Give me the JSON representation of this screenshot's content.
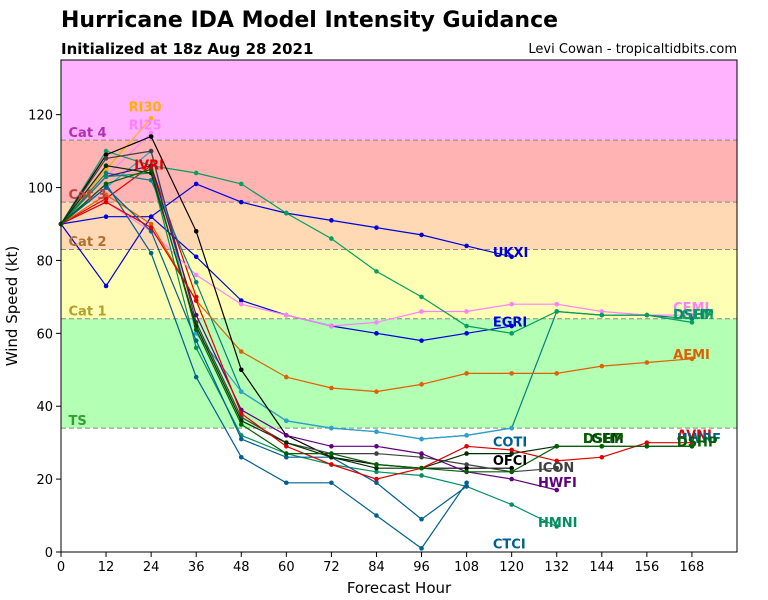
{
  "header": {
    "title": "Hurricane IDA Model Intensity Guidance",
    "subtitle": "Initialized at 18z Aug 28 2021",
    "credit": "Levi Cowan - tropicaltidbits.com"
  },
  "chart_data": {
    "type": "line",
    "xlabel": "Forecast Hour",
    "ylabel": "Wind Speed (kt)",
    "xlim": [
      0,
      180
    ],
    "ylim": [
      0,
      135
    ],
    "xticks": [
      0,
      12,
      24,
      36,
      48,
      60,
      72,
      84,
      96,
      108,
      120,
      132,
      144,
      156,
      168
    ],
    "yticks": [
      0,
      20,
      40,
      60,
      80,
      100,
      120
    ],
    "grid": false,
    "bands": [
      {
        "label": "",
        "from": 113,
        "to": 135,
        "color": "#ffb3ff"
      },
      {
        "label": "Cat 4",
        "from": 113,
        "to": 113,
        "color": "#ffb3ff",
        "text_color": "#b030b0"
      },
      {
        "label": "Cat 3",
        "from": 96,
        "to": 113,
        "color": "#ffb3b3",
        "text_color": "#c04040"
      },
      {
        "label": "Cat 2",
        "from": 83,
        "to": 96,
        "color": "#ffd9b3",
        "text_color": "#b07030"
      },
      {
        "label": "Cat 1",
        "from": 64,
        "to": 83,
        "color": "#ffffb3",
        "text_color": "#b0a030"
      },
      {
        "label": "TS",
        "from": 34,
        "to": 64,
        "color": "#b3ffb3",
        "text_color": "#30a030"
      }
    ],
    "series": [
      {
        "name": "RI30",
        "color": "#ffb000",
        "x": [
          0,
          12,
          24
        ],
        "y": [
          90,
          105,
          119
        ]
      },
      {
        "name": "RI25",
        "color": "#ff80ff",
        "x": [
          0,
          12,
          24
        ],
        "y": [
          90,
          103,
          115
        ]
      },
      {
        "name": "IVRI",
        "color": "#e00000",
        "x": [
          0,
          12,
          24,
          36
        ],
        "y": [
          90,
          97,
          106,
          70
        ]
      },
      {
        "name": "UKXI",
        "color": "#0000dd",
        "x": [
          0,
          12,
          24,
          36,
          48,
          60,
          72,
          84,
          96,
          108,
          120
        ],
        "y": [
          90,
          73,
          92,
          101,
          96,
          93,
          91,
          89,
          87,
          84,
          81
        ]
      },
      {
        "name": "EGRI",
        "color": "#0000dd",
        "x": [
          0,
          12,
          24,
          36,
          48,
          60,
          72,
          84,
          96,
          108,
          120
        ],
        "y": [
          90,
          92,
          92,
          81,
          69,
          65,
          62,
          60,
          58,
          60,
          62
        ]
      },
      {
        "name": "CEMI",
        "color": "#ff80ff",
        "x": [
          0,
          12,
          24,
          36,
          48,
          60,
          72,
          84,
          96,
          108,
          120,
          132,
          144,
          156,
          168
        ],
        "y": [
          90,
          96,
          88,
          76,
          68,
          65,
          62,
          63,
          66,
          66,
          68,
          68,
          66,
          65,
          65
        ]
      },
      {
        "name": "DSHP",
        "color": "#008080",
        "x": [
          0,
          12,
          24,
          36,
          48,
          60,
          72,
          84,
          96,
          108,
          120,
          132,
          144,
          156,
          168
        ],
        "y": [
          90,
          104,
          102,
          74,
          44,
          36,
          34,
          33,
          31,
          32,
          34,
          66,
          65,
          65,
          64
        ]
      },
      {
        "name": "LGEM",
        "color": "#00a060",
        "x": [
          0,
          12,
          24,
          36,
          48,
          60,
          72,
          84,
          96,
          108,
          120,
          132,
          144,
          156,
          168
        ],
        "y": [
          90,
          110,
          106,
          104,
          101,
          93,
          86,
          77,
          70,
          62,
          60,
          66,
          65,
          65,
          63
        ]
      },
      {
        "name": "AEMI",
        "color": "#e06000",
        "x": [
          0,
          12,
          24,
          36,
          48,
          60,
          72,
          84,
          96,
          108,
          120,
          132,
          144,
          156,
          168
        ],
        "y": [
          90,
          98,
          90,
          69,
          55,
          48,
          45,
          44,
          46,
          49,
          49,
          49,
          51,
          52,
          53
        ]
      },
      {
        "name": "COTI",
        "color": "#30a0d0",
        "x": [
          0,
          12,
          24,
          36,
          48,
          60,
          72,
          84,
          96,
          108,
          120
        ],
        "y": [
          90,
          100,
          110,
          60,
          44,
          36,
          34,
          33,
          31,
          32,
          34
        ]
      },
      {
        "name": "OFCI",
        "color": "#000000",
        "x": [
          0,
          12,
          24,
          36,
          48,
          60,
          72,
          84,
          96,
          108,
          120
        ],
        "y": [
          90,
          109,
          114,
          88,
          50,
          32,
          26,
          24,
          23,
          23,
          23
        ]
      },
      {
        "name": "ICON",
        "color": "#404040",
        "x": [
          0,
          12,
          24,
          36,
          48,
          60,
          72,
          84,
          96,
          108,
          120,
          132
        ],
        "y": [
          90,
          108,
          110,
          63,
          37,
          30,
          27,
          27,
          26,
          24,
          22,
          23
        ]
      },
      {
        "name": "HWFI",
        "color": "#600080",
        "x": [
          0,
          12,
          24,
          36,
          48,
          60,
          72,
          84,
          96,
          108,
          120,
          132
        ],
        "y": [
          90,
          103,
          106,
          65,
          39,
          32,
          29,
          29,
          27,
          22,
          20,
          17
        ]
      },
      {
        "name": "HMNI",
        "color": "#009060",
        "x": [
          0,
          12,
          24,
          36,
          48,
          60,
          72,
          84,
          96,
          108,
          120,
          132
        ],
        "y": [
          90,
          103,
          104,
          56,
          32,
          27,
          24,
          22,
          21,
          18,
          13,
          7
        ]
      },
      {
        "name": "CTCI",
        "color": "#006090",
        "x": [
          0,
          12,
          24,
          36,
          48,
          60,
          72,
          84,
          96,
          108
        ],
        "y": [
          90,
          101,
          82,
          48,
          26,
          19,
          19,
          10,
          1,
          19
        ]
      },
      {
        "name": "HWRF",
        "color": "#006090",
        "x": [
          0,
          12,
          24,
          36,
          48,
          60,
          72,
          84,
          96,
          108
        ],
        "y": [
          90,
          100,
          88,
          58,
          31,
          26,
          26,
          19,
          9,
          18
        ]
      },
      {
        "name": "LGEM2",
        "color": "#003000",
        "x": [
          0,
          12,
          24,
          36,
          48,
          60,
          72,
          84,
          96,
          108,
          120,
          132,
          144,
          156,
          168
        ],
        "y": [
          90,
          106,
          104,
          62,
          36,
          30,
          26,
          23,
          23,
          27,
          27,
          29,
          29,
          29,
          29
        ]
      },
      {
        "name": "AVNI",
        "color": "#e00000",
        "x": [
          0,
          12,
          24,
          36,
          48,
          60,
          72,
          84,
          96,
          108,
          120,
          132,
          144,
          156,
          168
        ],
        "y": [
          90,
          96,
          89,
          69,
          38,
          29,
          24,
          20,
          23,
          29,
          28,
          25,
          26,
          30,
          30
        ]
      },
      {
        "name": "DSHP2",
        "color": "#006000",
        "x": [
          0,
          12,
          24,
          36,
          48,
          60,
          72,
          84,
          96,
          108,
          120,
          132,
          144,
          156,
          168
        ],
        "y": [
          90,
          101,
          105,
          61,
          35,
          27,
          27,
          24,
          23,
          22,
          22,
          29,
          29,
          29,
          29
        ]
      }
    ],
    "labels": [
      {
        "text": "RI30",
        "x": 18,
        "y": 122,
        "color": "#ffb000"
      },
      {
        "text": "RI25",
        "x": 18,
        "y": 117,
        "color": "#ff80ff"
      },
      {
        "text": "Cat 4",
        "x": 2,
        "y": 115,
        "color": "#b030b0"
      },
      {
        "text": "IVRI",
        "x": 19.5,
        "y": 106,
        "color": "#e00000"
      },
      {
        "text": "Cat 3",
        "x": 2,
        "y": 98,
        "color": "#c04040"
      },
      {
        "text": "Cat 2",
        "x": 2,
        "y": 85,
        "color": "#b07030"
      },
      {
        "text": "UKXI",
        "x": 115,
        "y": 82,
        "color": "#0000dd"
      },
      {
        "text": "Cat 1",
        "x": 2,
        "y": 66,
        "color": "#b0a030"
      },
      {
        "text": "CEMI",
        "x": 163,
        "y": 67,
        "color": "#ff80ff"
      },
      {
        "text": "DSHP",
        "x": 163,
        "y": 65,
        "color": "#008080"
      },
      {
        "text": "LGEM",
        "x": 163,
        "y": 65,
        "color": "#00a060"
      },
      {
        "text": "EGRI",
        "x": 115,
        "y": 63,
        "color": "#0000dd"
      },
      {
        "text": "AEMI",
        "x": 163,
        "y": 54,
        "color": "#e06000"
      },
      {
        "text": "TS",
        "x": 2,
        "y": 36,
        "color": "#30a030"
      },
      {
        "text": "COTI",
        "x": 115,
        "y": 30,
        "color": "#006090"
      },
      {
        "text": "LGEM",
        "x": 139,
        "y": 31,
        "color": "#003000"
      },
      {
        "text": "DSHP",
        "x": 139,
        "y": 31,
        "color": "#006000"
      },
      {
        "text": "AVNI",
        "x": 164,
        "y": 32,
        "color": "#e00000"
      },
      {
        "text": "HWRF",
        "x": 164,
        "y": 31,
        "color": "#006090"
      },
      {
        "text": "DSHP",
        "x": 164,
        "y": 30,
        "color": "#006000"
      },
      {
        "text": "OFCI",
        "x": 115,
        "y": 25,
        "color": "#000000"
      },
      {
        "text": "ICON",
        "x": 127,
        "y": 23,
        "color": "#404040"
      },
      {
        "text": "HWFI",
        "x": 127,
        "y": 19,
        "color": "#600080"
      },
      {
        "text": "HMNI",
        "x": 127,
        "y": 8,
        "color": "#009060"
      },
      {
        "text": "CTCI",
        "x": 115,
        "y": 2,
        "color": "#006090"
      }
    ]
  }
}
